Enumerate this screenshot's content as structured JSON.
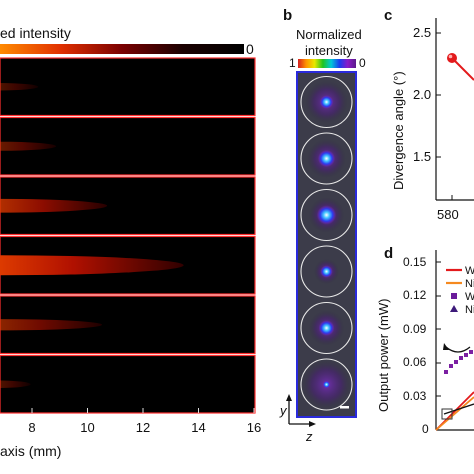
{
  "panel_a": {
    "colorbar_label": "ed intensity",
    "colorbar_min_label": "0",
    "xlabel": "axis (mm)",
    "xticks": [
      "8",
      "10",
      "12",
      "14",
      "16"
    ],
    "rows": [
      {
        "peak": 0.1,
        "reach": 0.15
      },
      {
        "peak": 0.22,
        "reach": 0.22
      },
      {
        "peak": 0.55,
        "reach": 0.42
      },
      {
        "peak": 1.0,
        "reach": 0.72
      },
      {
        "peak": 0.38,
        "reach": 0.4
      },
      {
        "peak": 0.1,
        "reach": 0.12
      }
    ]
  },
  "panel_b": {
    "label": "b",
    "title_line1": "Normalized",
    "title_line2": "intensity",
    "colorbar_max": "1",
    "colorbar_min": "0",
    "axis_y": "y",
    "axis_z": "z",
    "spots": [
      {
        "core": 0.55,
        "halo": 0.65
      },
      {
        "core": 0.8,
        "halo": 0.55
      },
      {
        "core": 0.95,
        "halo": 0.45
      },
      {
        "core": 0.45,
        "halo": 0.15
      },
      {
        "core": 0.7,
        "halo": 0.45
      },
      {
        "core": 0.1,
        "halo": 0.85
      }
    ]
  },
  "panel_c": {
    "label": "c",
    "ylabel": "Divergence angle (°)",
    "yticks": [
      "2.5",
      "2.0",
      "1.5"
    ],
    "xticks": [
      "580"
    ],
    "line_color": "#e31a1c"
  },
  "panel_d": {
    "label": "d",
    "ylabel": "Output power (mW)",
    "yticks": [
      "0.15",
      "0.12",
      "0.09",
      "0.06",
      "0.03",
      "0"
    ],
    "legend": [
      {
        "label": "W",
        "color": "#e31a1c",
        "kind": "line"
      },
      {
        "label": "Ni",
        "color": "#f5891f",
        "kind": "line"
      },
      {
        "label": "W",
        "color": "#6a1b9a",
        "kind": "square"
      },
      {
        "label": "Ni",
        "color": "#3d1a7a",
        "kind": "triangle"
      }
    ]
  }
}
